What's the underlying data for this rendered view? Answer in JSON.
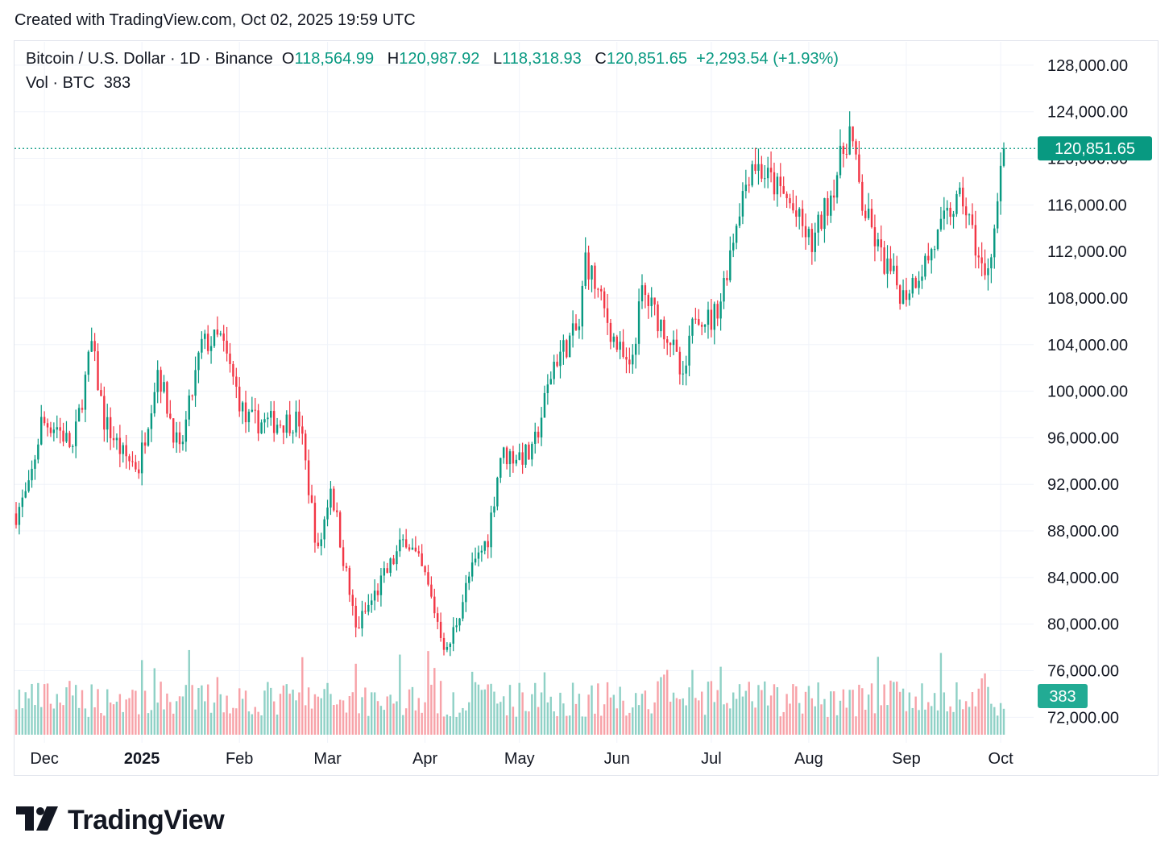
{
  "header": {
    "created_text": "Created with TradingView.com, Oct 02, 2025 19:59 UTC"
  },
  "legend": {
    "symbol": "Bitcoin / U.S. Dollar · 1D · Binance",
    "open_label": "O",
    "open": "118,564.99",
    "high_label": "H",
    "high": "120,987.92",
    "low_label": "L",
    "low": "118,318.93",
    "close_label": "C",
    "close": "120,851.65",
    "change": "+2,293.54 (+1.93%)",
    "vol_label": "Vol · BTC",
    "vol_value": "383"
  },
  "brand": {
    "name": "TradingView",
    "logo_icon": "tradingview-logo-icon"
  },
  "colors": {
    "up": "#089981",
    "down": "#f23645",
    "up_vol": "#8fd1c6",
    "down_vol": "#f7a2a8",
    "grid": "#f0f3fa",
    "text": "#131722"
  },
  "chart_data": {
    "type": "candlestick",
    "price_axis": {
      "ticks": [
        128000,
        124000,
        120000,
        116000,
        112000,
        108000,
        104000,
        100000,
        96000,
        92000,
        88000,
        84000,
        80000,
        76000,
        72000
      ],
      "tick_labels": [
        "128,000.00",
        "124,000.00",
        "120,000.00",
        "116,000.00",
        "112,000.00",
        "108,000.00",
        "104,000.00",
        "100,000.00",
        "96,000.00",
        "92,000.00",
        "88,000.00",
        "84,000.00",
        "80,000.00",
        "76,000.00",
        "72,000.00"
      ],
      "ylim": [
        70500,
        130000
      ]
    },
    "time_axis": {
      "labels": [
        {
          "text": "Dec",
          "date": "2024-12-01",
          "bold": false
        },
        {
          "text": "2025",
          "date": "2025-01-01",
          "bold": true
        },
        {
          "text": "Feb",
          "date": "2025-02-01",
          "bold": false
        },
        {
          "text": "Mar",
          "date": "2025-03-01",
          "bold": false
        },
        {
          "text": "Apr",
          "date": "2025-04-01",
          "bold": false
        },
        {
          "text": "May",
          "date": "2025-05-01",
          "bold": false
        },
        {
          "text": "Jun",
          "date": "2025-06-01",
          "bold": false
        },
        {
          "text": "Jul",
          "date": "2025-07-01",
          "bold": false
        },
        {
          "text": "Aug",
          "date": "2025-08-01",
          "bold": false
        },
        {
          "text": "Sep",
          "date": "2025-09-01",
          "bold": false
        },
        {
          "text": "Oct",
          "date": "2025-10-01",
          "bold": false
        }
      ],
      "range": [
        "2024-11-22",
        "2025-10-02"
      ]
    },
    "last_price": {
      "value": 120851.65,
      "label": "120,851.65"
    },
    "volume_badge": {
      "label": "383"
    },
    "price_points": [
      {
        "date": "2024-11-22",
        "close": 89500
      },
      {
        "date": "2024-11-26",
        "close": 91500
      },
      {
        "date": "2024-11-30",
        "close": 97300
      },
      {
        "date": "2024-12-05",
        "close": 97000
      },
      {
        "date": "2024-12-10",
        "close": 95000
      },
      {
        "date": "2024-12-16",
        "close": 104000
      },
      {
        "date": "2024-12-20",
        "close": 97500
      },
      {
        "date": "2024-12-26",
        "close": 94500
      },
      {
        "date": "2024-12-31",
        "close": 93500
      },
      {
        "date": "2025-01-06",
        "close": 102000
      },
      {
        "date": "2025-01-13",
        "close": 94500
      },
      {
        "date": "2025-01-20",
        "close": 104000
      },
      {
        "date": "2025-01-26",
        "close": 104500
      },
      {
        "date": "2025-02-03",
        "close": 97500
      },
      {
        "date": "2025-02-10",
        "close": 97300
      },
      {
        "date": "2025-02-20",
        "close": 97500
      },
      {
        "date": "2025-02-26",
        "close": 86000
      },
      {
        "date": "2025-03-02",
        "close": 92000
      },
      {
        "date": "2025-03-10",
        "close": 79500
      },
      {
        "date": "2025-03-20",
        "close": 84500
      },
      {
        "date": "2025-03-26",
        "close": 87500
      },
      {
        "date": "2025-04-01",
        "close": 84000
      },
      {
        "date": "2025-04-08",
        "close": 77500
      },
      {
        "date": "2025-04-15",
        "close": 84000
      },
      {
        "date": "2025-04-21",
        "close": 87500
      },
      {
        "date": "2025-04-25",
        "close": 94500
      },
      {
        "date": "2025-05-05",
        "close": 94500
      },
      {
        "date": "2025-05-12",
        "close": 102500
      },
      {
        "date": "2025-05-20",
        "close": 105500
      },
      {
        "date": "2025-05-22",
        "close": 111500
      },
      {
        "date": "2025-05-31",
        "close": 104500
      },
      {
        "date": "2025-06-05",
        "close": 101500
      },
      {
        "date": "2025-06-09",
        "close": 108500
      },
      {
        "date": "2025-06-18",
        "close": 104500
      },
      {
        "date": "2025-06-22",
        "close": 100500
      },
      {
        "date": "2025-06-26",
        "close": 107000
      },
      {
        "date": "2025-07-01",
        "close": 106000
      },
      {
        "date": "2025-07-04",
        "close": 108000
      },
      {
        "date": "2025-07-10",
        "close": 116000
      },
      {
        "date": "2025-07-14",
        "close": 119800
      },
      {
        "date": "2025-07-20",
        "close": 118000
      },
      {
        "date": "2025-07-25",
        "close": 116500
      },
      {
        "date": "2025-08-02",
        "close": 112500
      },
      {
        "date": "2025-08-08",
        "close": 117000
      },
      {
        "date": "2025-08-14",
        "close": 122500
      },
      {
        "date": "2025-08-18",
        "close": 116000
      },
      {
        "date": "2025-08-24",
        "close": 111500
      },
      {
        "date": "2025-08-31",
        "close": 108200
      },
      {
        "date": "2025-09-08",
        "close": 111500
      },
      {
        "date": "2025-09-15",
        "close": 115500
      },
      {
        "date": "2025-09-19",
        "close": 116500
      },
      {
        "date": "2025-09-23",
        "close": 112500
      },
      {
        "date": "2025-09-26",
        "close": 109500
      },
      {
        "date": "2025-09-29",
        "close": 114000
      },
      {
        "date": "2025-10-01",
        "close": 118500
      },
      {
        "date": "2025-10-02",
        "close": 120851
      }
    ]
  }
}
